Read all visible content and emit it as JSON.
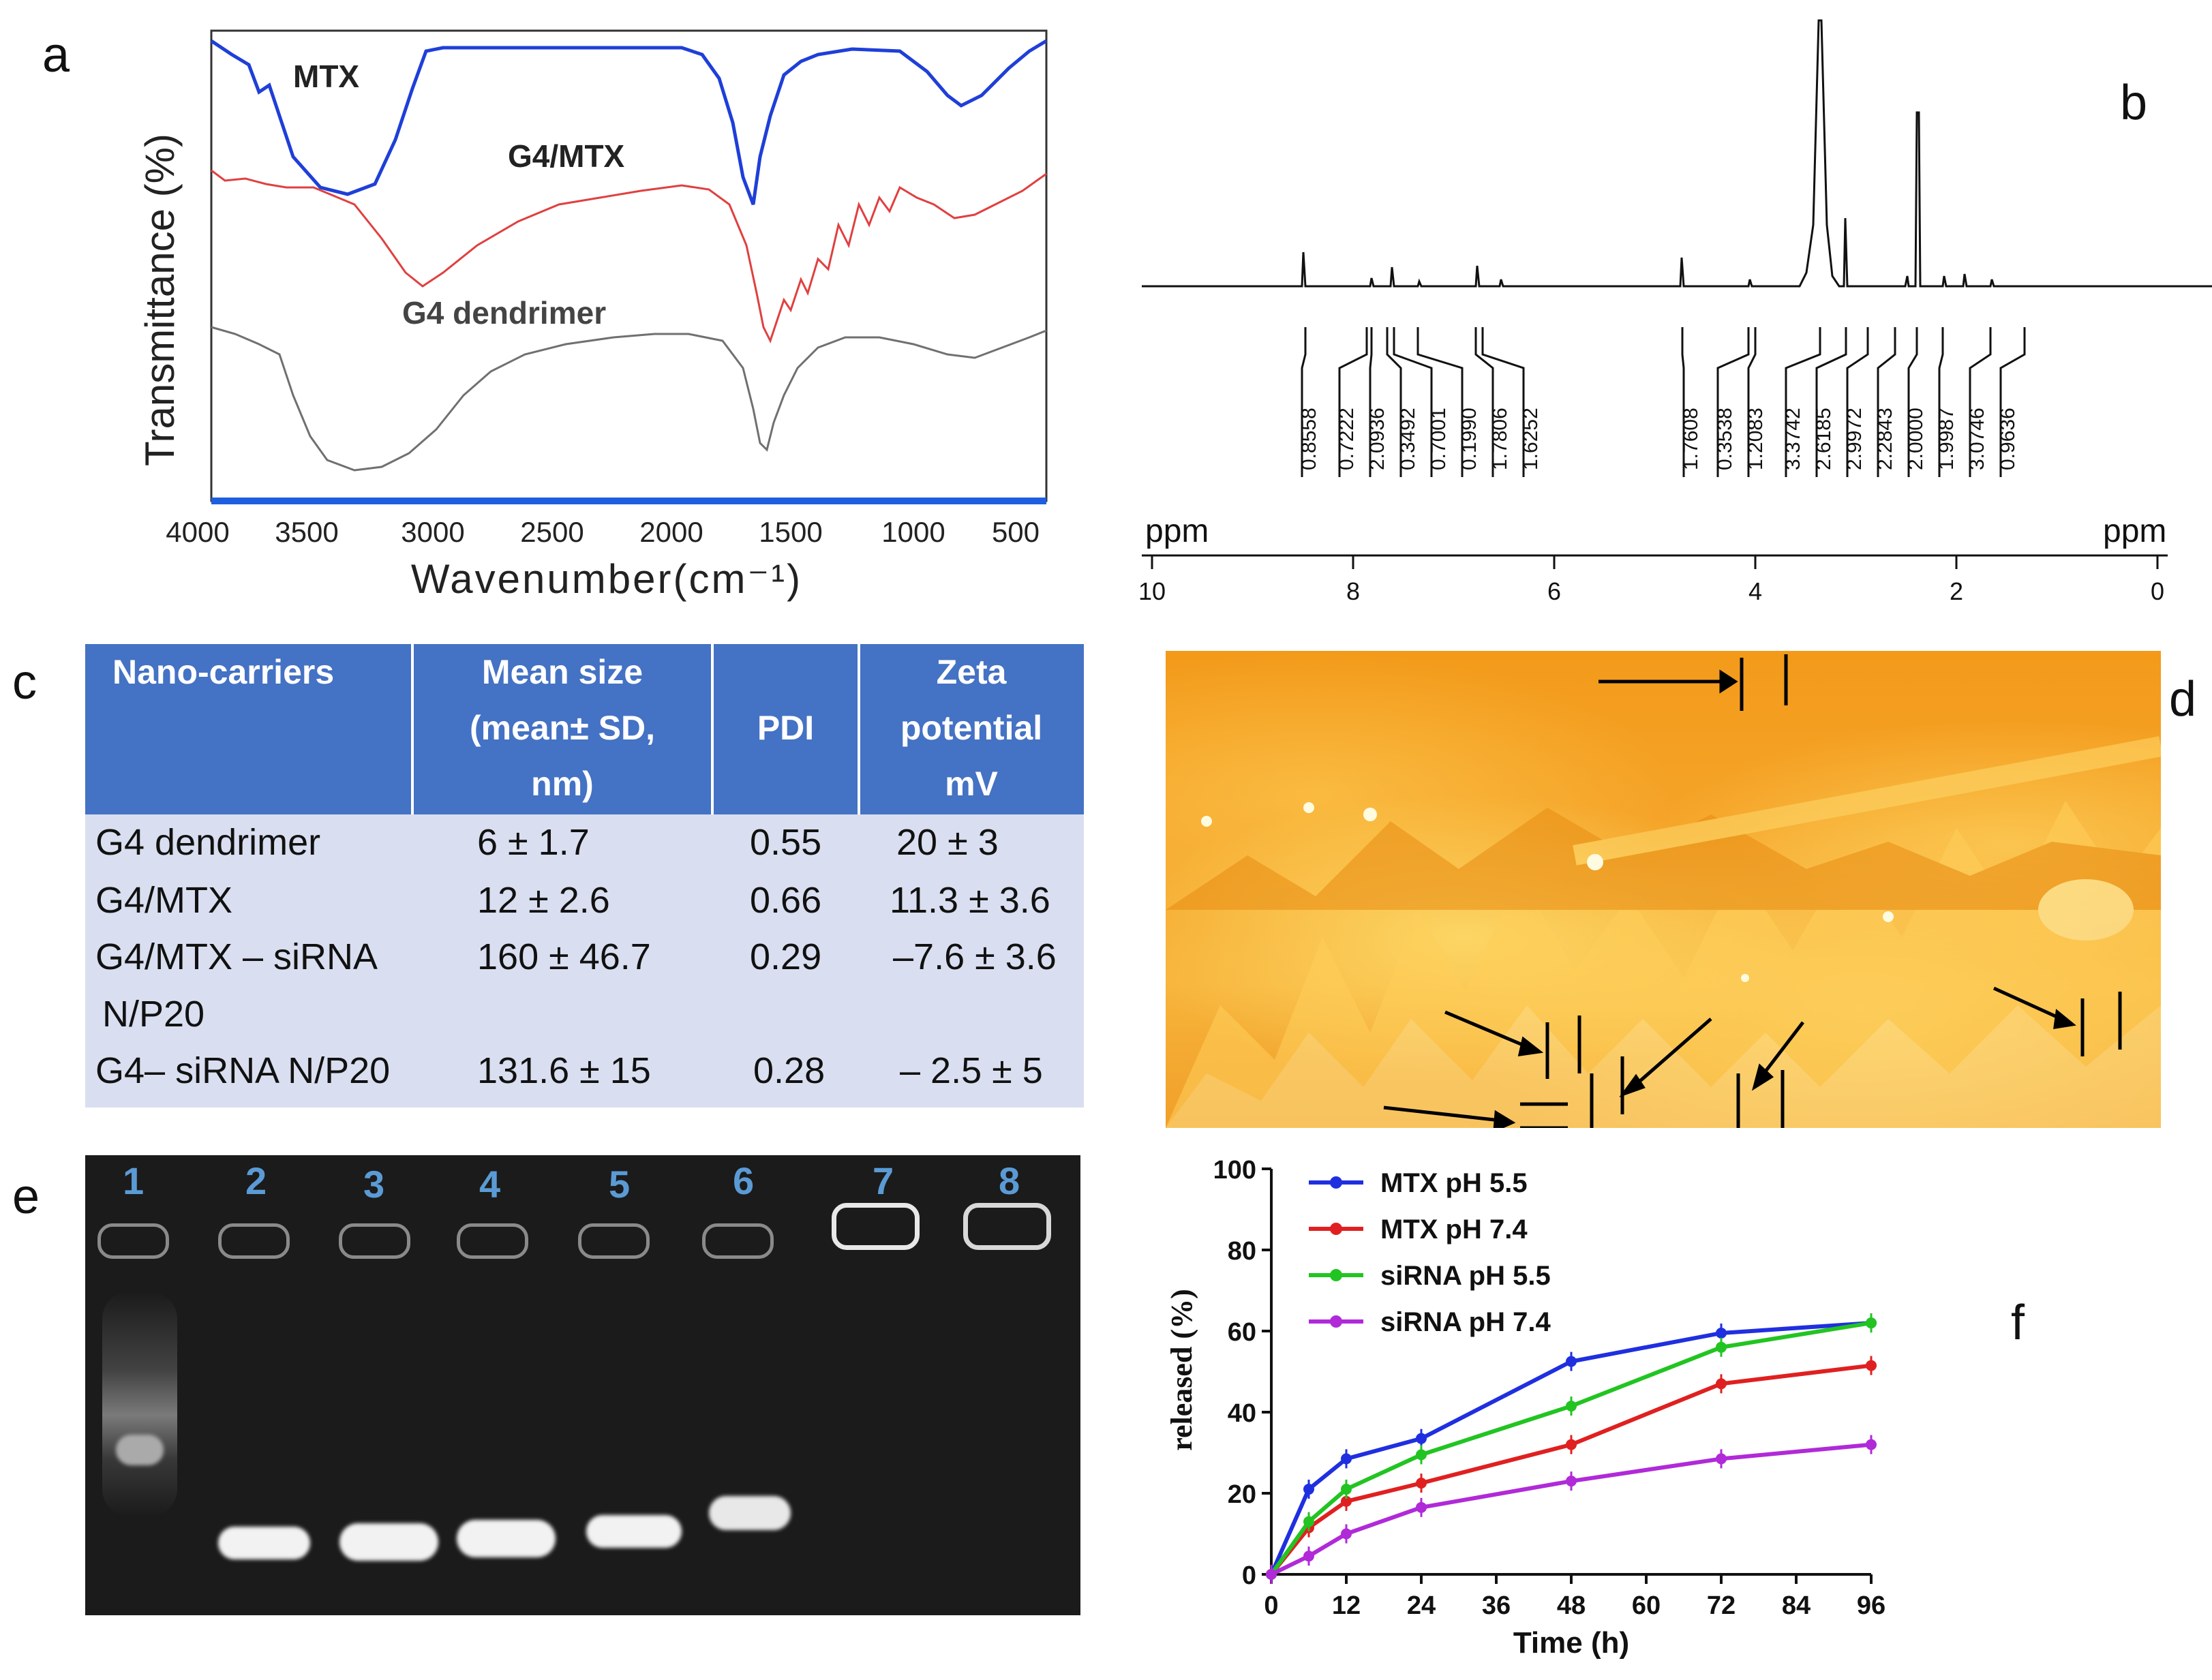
{
  "panel_letters": {
    "a": "a",
    "b": "b",
    "c": "c",
    "d": "d",
    "e": "e",
    "f": "f"
  },
  "colors": {
    "ftir_mtx": "#1f3fd8",
    "ftir_g4mtx": "#e04040",
    "ftir_g4": "#707070",
    "table_header": "#4472C4",
    "table_body": "#D9DFF0"
  },
  "ftir": {
    "ylabel": "Transmittance (%)",
    "xlabel": "Wavenumber(cm⁻¹)",
    "ticks": [
      "4000",
      "3500",
      "3000",
      "2500",
      "2000",
      "1500",
      "1000",
      "500"
    ],
    "labels": {
      "mtx": "MTX",
      "g4mtx": "G4/MTX",
      "g4": "G4 dendrimer"
    }
  },
  "nmr": {
    "ppm_left": "ppm",
    "ppm_right": "ppm",
    "axis_ticks": [
      "10",
      "8",
      "6",
      "4",
      "2",
      "0"
    ],
    "integrals": [
      "0.8558",
      "0.7222",
      "2.0936",
      "0.3492",
      "0.7001",
      "0.1990",
      "1.7806",
      "1.6252",
      "1.7608",
      "0.3538",
      "1.2083",
      "3.3742",
      "2.6185",
      "2.9972",
      "2.2843",
      "2.0000",
      "1.9987",
      "3.0746",
      "0.9636"
    ]
  },
  "table": {
    "headers": [
      "Nano-carriers",
      "Mean size (mean± SD, nm)",
      "PDI",
      "Zeta potential mV"
    ],
    "header_lines": {
      "c0": [
        "Nano-carriers"
      ],
      "c1": [
        "Mean size",
        "(mean± SD,",
        "nm)"
      ],
      "c2": [
        "PDI"
      ],
      "c3": [
        "Zeta",
        "potential",
        "mV"
      ]
    },
    "rows": [
      {
        "name": "G4 dendrimer",
        "name2": "",
        "size": "6 ± 1.7",
        "pdi": "0.55",
        "zeta": "20 ± 3"
      },
      {
        "name": "G4/MTX",
        "name2": "",
        "size": "12 ± 2.6",
        "pdi": "0.66",
        "zeta": "11.3 ± 3.6"
      },
      {
        "name": "G4/MTX – siRNA",
        "name2": "N/P20",
        "size": "160 ± 46.7",
        "pdi": "0.29",
        "zeta": "–7.6 ± 3.6"
      },
      {
        "name": "G4– siRNA N/P20",
        "name2": "",
        "size": "131.6 ± 15",
        "pdi": "0.28",
        "zeta": "– 2.5 ± 5"
      }
    ]
  },
  "gel": {
    "lanes": [
      "1",
      "2",
      "3",
      "4",
      "5",
      "6",
      "7",
      "8"
    ]
  },
  "chart_data": {
    "type": "line",
    "title": "",
    "xlabel": "Time (h)",
    "ylabel": "released (%)",
    "xlim": [
      0,
      96
    ],
    "ylim": [
      0,
      100
    ],
    "xticks": [
      0,
      12,
      24,
      36,
      48,
      60,
      72,
      84,
      96
    ],
    "yticks": [
      0,
      20,
      40,
      60,
      80,
      100
    ],
    "x": [
      0,
      6,
      12,
      24,
      48,
      72,
      96
    ],
    "legend_position": "top-left",
    "series": [
      {
        "name": "MTX pH 5.5",
        "color": "#1f2fe0",
        "values": [
          0,
          21,
          28.5,
          33.5,
          52.5,
          59.5,
          62
        ]
      },
      {
        "name": "MTX pH 7.4",
        "color": "#e02020",
        "values": [
          0,
          11.5,
          18,
          22.5,
          32,
          47,
          51.5
        ]
      },
      {
        "name": "siRNA pH 5.5",
        "color": "#22c422",
        "values": [
          0,
          13,
          21,
          29.5,
          41.5,
          56,
          62
        ]
      },
      {
        "name": "siRNA pH 7.4",
        "color": "#b02ad8",
        "values": [
          0,
          4.5,
          10,
          16.5,
          23,
          28.5,
          32
        ]
      }
    ]
  }
}
